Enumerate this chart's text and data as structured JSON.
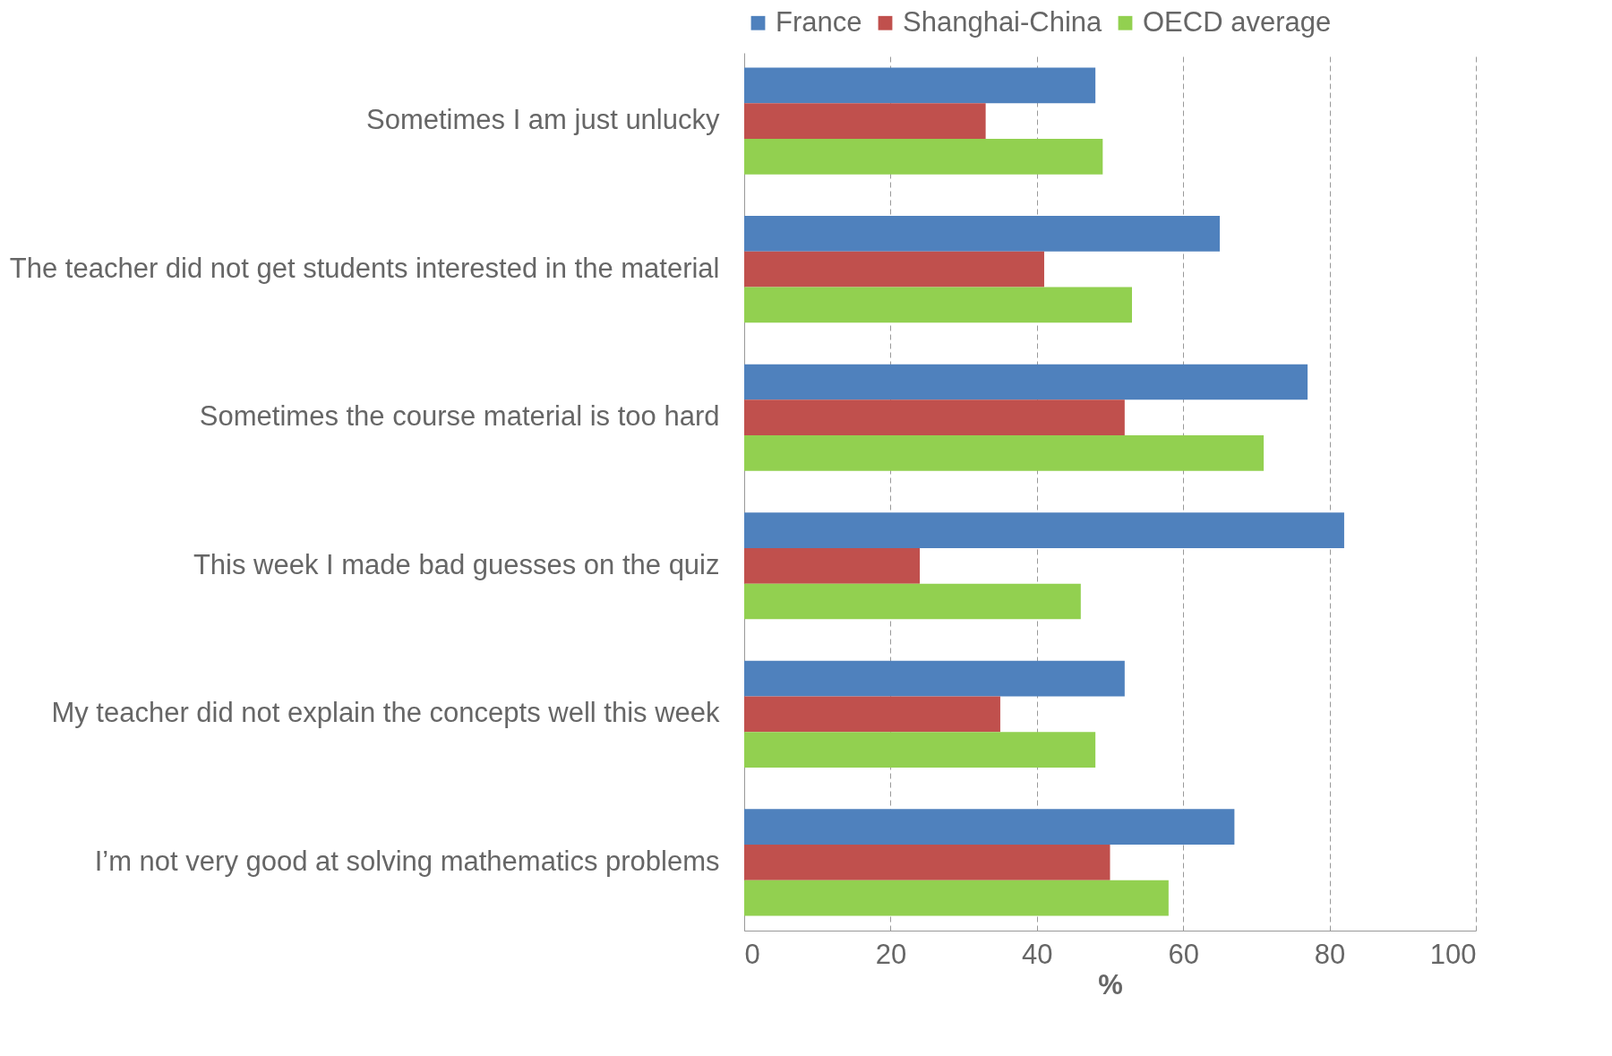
{
  "chart_data": {
    "type": "bar",
    "orientation": "horizontal",
    "xlabel": "%",
    "categories": [
      "Sometimes I am just unlucky",
      "The teacher did not get students interested in the material",
      "Sometimes the course material is too hard",
      "This week I made bad guesses on the quiz",
      "My teacher did not explain the concepts well this week",
      "I’m not very good at solving mathematics problems"
    ],
    "series": [
      {
        "name": "France",
        "color": "#4f81bd",
        "values": [
          48,
          65,
          77,
          82,
          52,
          67
        ]
      },
      {
        "name": "Shanghai-China",
        "color": "#c0504d",
        "values": [
          33,
          41,
          52,
          24,
          35,
          50
        ]
      },
      {
        "name": "OECD average",
        "color": "#92d050",
        "values": [
          49,
          53,
          71,
          46,
          48,
          58
        ]
      }
    ],
    "xlim": [
      0,
      100
    ],
    "xticks": [
      0,
      20,
      40,
      60,
      80,
      100
    ],
    "grid": "x",
    "legend": "top left"
  }
}
